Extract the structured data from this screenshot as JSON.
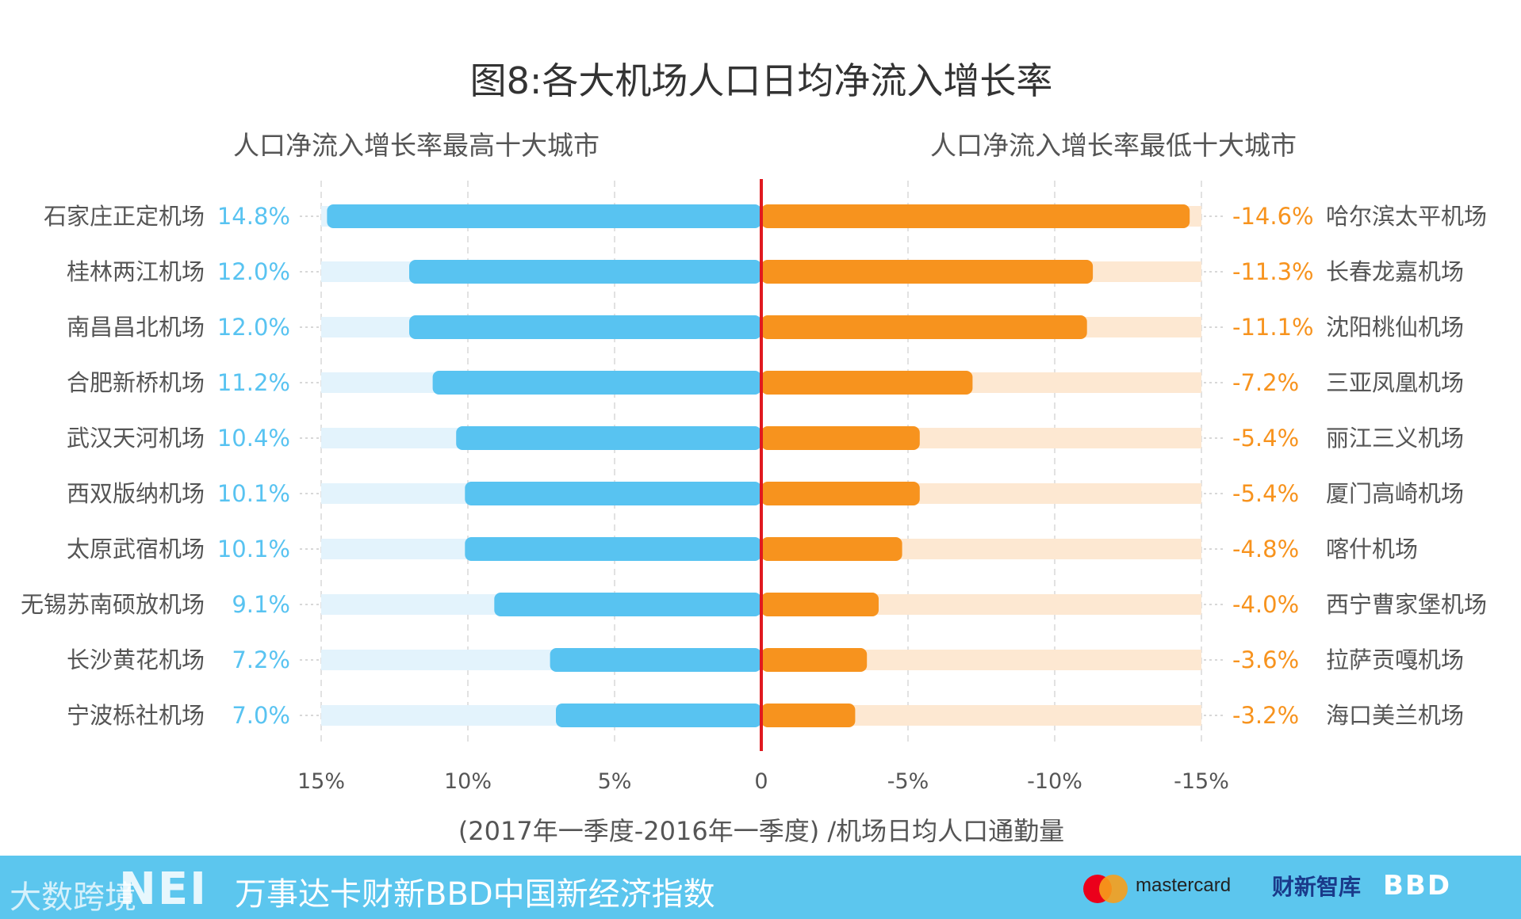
{
  "chart_data": {
    "type": "bar",
    "title": "图8:各大机场人口日均净流入增长率",
    "left_subtitle": "人口净流入增长率最高十大城市",
    "right_subtitle": "人口净流入增长率最低十大城市",
    "xlabel": "(2017年一季度-2016年一季度) /机场日均人口通勤量",
    "xlim": [
      -15,
      15
    ],
    "ticks": [
      "15%",
      "10%",
      "5%",
      "0",
      "-5%",
      "-10%",
      "-15%"
    ],
    "series": [
      {
        "name": "人口净流入增长率最高十大城市",
        "color": "#58c3f1",
        "track_color": "#e3f3fc",
        "categories": [
          "石家庄正定机场",
          "桂林两江机场",
          "南昌昌北机场",
          "合肥新桥机场",
          "武汉天河机场",
          "西双版纳机场",
          "太原武宿机场",
          "无锡苏南硕放机场",
          "长沙黄花机场",
          "宁波栎社机场"
        ],
        "values": [
          14.8,
          12.0,
          12.0,
          11.2,
          10.4,
          10.1,
          10.1,
          9.1,
          7.2,
          7.0
        ],
        "labels": [
          "14.8%",
          "12.0%",
          "12.0%",
          "11.2%",
          "10.4%",
          "10.1%",
          "10.1%",
          "9.1%",
          "7.2%",
          "7.0%"
        ]
      },
      {
        "name": "人口净流入增长率最低十大城市",
        "color": "#f7931e",
        "track_color": "#fde8d2",
        "categories": [
          "哈尔滨太平机场",
          "长春龙嘉机场",
          "沈阳桃仙机场",
          "三亚凤凰机场",
          "丽江三义机场",
          "厦门高崎机场",
          "喀什机场",
          "西宁曹家堡机场",
          "拉萨贡嘎机场",
          "海口美兰机场"
        ],
        "values": [
          -14.6,
          -11.3,
          -11.1,
          -7.2,
          -5.4,
          -5.4,
          -4.8,
          -4.0,
          -3.6,
          -3.2
        ],
        "labels": [
          "-14.6%",
          "-11.3%",
          "-11.1%",
          "-7.2%",
          "-5.4%",
          "-5.4%",
          "-4.8%",
          "-4.0%",
          "-3.6%",
          "-3.2%"
        ]
      }
    ],
    "zero_line_color": "#e0191f"
  },
  "footer": {
    "watermark": "大数跨境",
    "logo": "NEI",
    "title": "万事达卡财新BBD中国新经济指数",
    "mastercard": "mastercard",
    "caixin": "财新智库",
    "bbd": "BBD"
  }
}
